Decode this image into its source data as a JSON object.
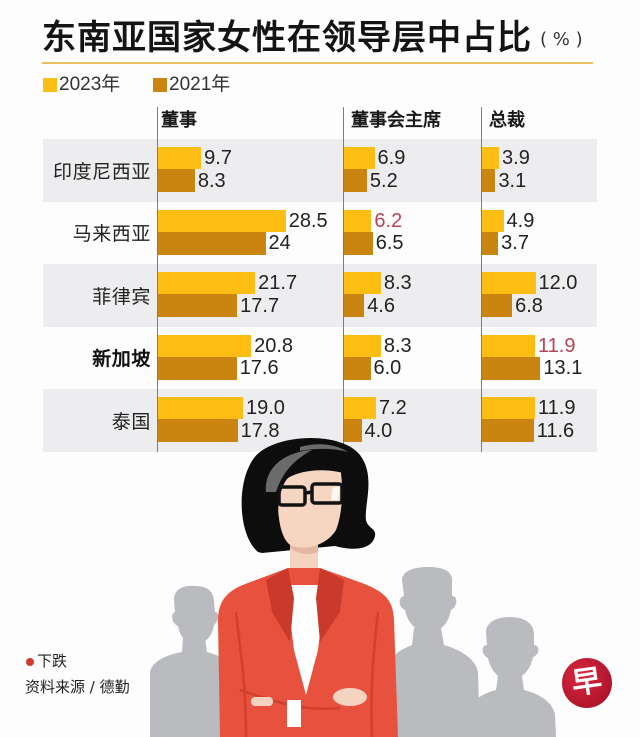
{
  "title": {
    "main": "东南亚国家女性在领导层中占比",
    "unit": "( % )"
  },
  "legend": [
    {
      "label": "2023年",
      "color": "#FDBD12"
    },
    {
      "label": "2021年",
      "color": "#C9850F"
    }
  ],
  "columns": {
    "director": "董事",
    "chair": "董事会主席",
    "ceo": "总裁"
  },
  "rows": [
    {
      "country": "印度尼西亚",
      "emphasis": false,
      "director": {
        "y2023": "9.7",
        "y2021": "8.3"
      },
      "chair": {
        "y2023": "6.9",
        "y2021": "5.2"
      },
      "ceo": {
        "y2023": "3.9",
        "y2021": "3.1"
      }
    },
    {
      "country": "马来西亚",
      "emphasis": false,
      "director": {
        "y2023": "28.5",
        "y2021": "24"
      },
      "chair": {
        "y2023": "6.2",
        "y2021": "6.5",
        "y2023_down": true
      },
      "ceo": {
        "y2023": "4.9",
        "y2021": "3.7"
      }
    },
    {
      "country": "菲律宾",
      "emphasis": false,
      "director": {
        "y2023": "21.7",
        "y2021": "17.7"
      },
      "chair": {
        "y2023": "8.3",
        "y2021": "4.6"
      },
      "ceo": {
        "y2023": "12.0",
        "y2021": "6.8"
      }
    },
    {
      "country": "新加坡",
      "emphasis": true,
      "director": {
        "y2023": "20.8",
        "y2021": "17.6"
      },
      "chair": {
        "y2023": "8.3",
        "y2021": "6.0"
      },
      "ceo": {
        "y2023": "11.9",
        "y2021": "13.1",
        "y2023_down": true
      }
    },
    {
      "country": "泰国",
      "emphasis": false,
      "director": {
        "y2023": "19.0",
        "y2021": "17.8"
      },
      "chair": {
        "y2023": "7.2",
        "y2021": "4.0"
      },
      "ceo": {
        "y2023": "11.9",
        "y2021": "11.6"
      }
    }
  ],
  "footnote": {
    "decline_label": "下跌",
    "decline_color": "#D23B2B",
    "source": "资料来源 / 德勤"
  },
  "logo": {
    "glyph": "早"
  },
  "colors": {
    "decline_text": "#B54556",
    "row_shade": "#EDEDF0",
    "jacket": "#E8513D",
    "silhouette": "#BABBBE"
  },
  "chart_data": {
    "type": "bar",
    "orientation": "horizontal",
    "title": "东南亚国家女性在领导层中占比",
    "unit": "%",
    "categories": [
      "印度尼西亚",
      "马来西亚",
      "菲律宾",
      "新加坡",
      "泰国"
    ],
    "legend": [
      "2023年",
      "2021年"
    ],
    "legend_position": "top-left",
    "grid": false,
    "panels": [
      {
        "name": "董事",
        "series": [
          {
            "name": "2023年",
            "values": [
              9.7,
              28.5,
              21.7,
              20.8,
              19.0
            ]
          },
          {
            "name": "2021年",
            "values": [
              8.3,
              24,
              17.7,
              17.6,
              17.8
            ]
          }
        ]
      },
      {
        "name": "董事会主席",
        "series": [
          {
            "name": "2023年",
            "values": [
              6.9,
              6.2,
              8.3,
              8.3,
              7.2
            ]
          },
          {
            "name": "2021年",
            "values": [
              5.2,
              6.5,
              4.6,
              6.0,
              4.0
            ]
          }
        ]
      },
      {
        "name": "总裁",
        "series": [
          {
            "name": "2023年",
            "values": [
              3.9,
              4.9,
              12.0,
              11.9,
              11.9
            ]
          },
          {
            "name": "2021年",
            "values": [
              3.1,
              3.7,
              6.8,
              13.1,
              11.6
            ]
          }
        ]
      }
    ],
    "highlighted_declines": [
      {
        "category": "马来西亚",
        "panel": "董事会主席",
        "series": "2023年",
        "value": 6.2
      },
      {
        "category": "新加坡",
        "panel": "总裁",
        "series": "2023年",
        "value": 11.9
      }
    ],
    "annotations": [
      "●下跌 (red values indicate decline)"
    ],
    "source": "资料来源 / 德勤"
  }
}
